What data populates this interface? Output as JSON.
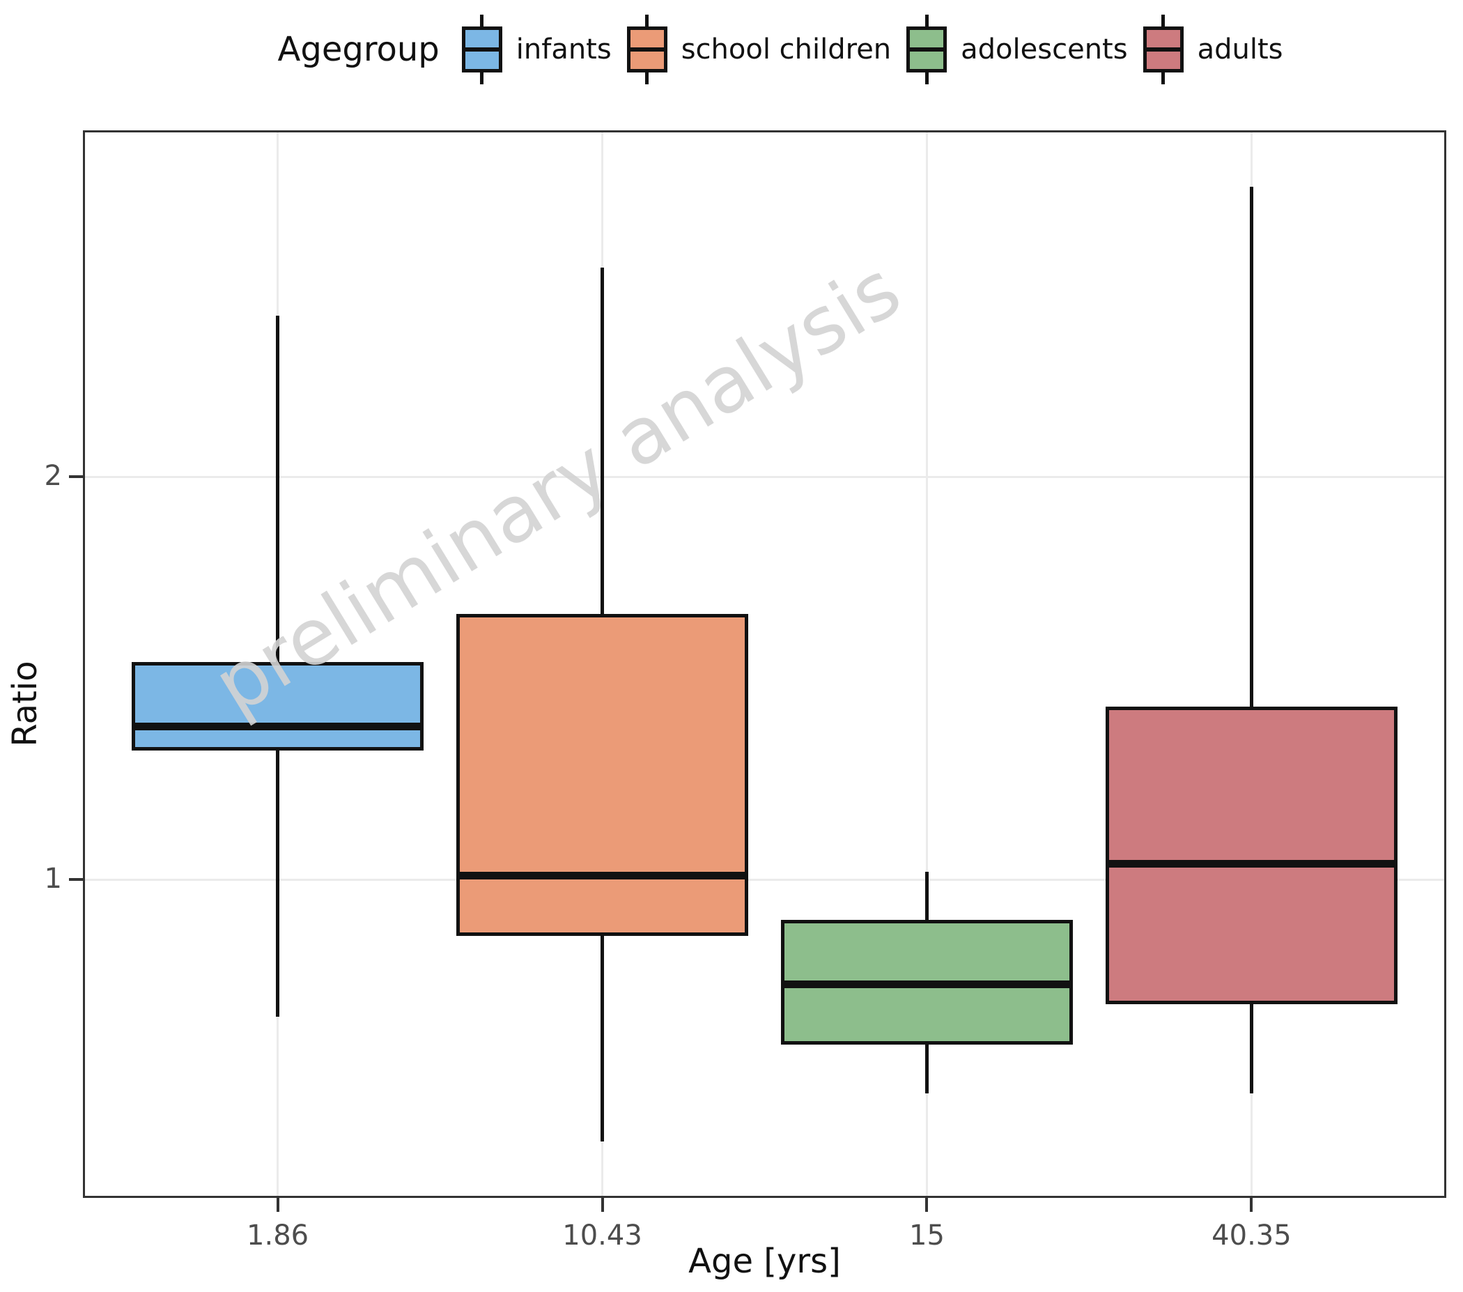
{
  "watermark": "preliminary analysis",
  "legend": {
    "title": "Agegroup",
    "items": [
      {
        "label": "infants",
        "color": "#7CB7E5"
      },
      {
        "label": "school children",
        "color": "#EB9B77"
      },
      {
        "label": "adolescents",
        "color": "#8DBE8C"
      },
      {
        "label": "adults",
        "color": "#CD7B7F"
      }
    ]
  },
  "chart_data": {
    "type": "boxplot",
    "title": "",
    "xlabel": "Age [yrs]",
    "ylabel": "Ratio",
    "x_tick_labels": [
      "1.86",
      "10.43",
      "15",
      "40.35"
    ],
    "y_ticks": [
      {
        "value": 1,
        "label": "1"
      },
      {
        "value": 2,
        "label": "2"
      }
    ],
    "ylim": [
      0.21,
      2.86
    ],
    "grid": true,
    "legend_position": "top",
    "series": [
      {
        "group": "infants",
        "x_label": "1.86",
        "color": "#7CB7E5",
        "whisker_low": 0.66,
        "q1": 1.32,
        "median": 1.38,
        "q3": 1.54,
        "whisker_high": 2.4
      },
      {
        "group": "school children",
        "x_label": "10.43",
        "color": "#EB9B77",
        "whisker_low": 0.35,
        "q1": 0.86,
        "median": 1.01,
        "q3": 1.66,
        "whisker_high": 2.52
      },
      {
        "group": "adolescents",
        "x_label": "15",
        "color": "#8DBE8C",
        "whisker_low": 0.47,
        "q1": 0.59,
        "median": 0.74,
        "q3": 0.9,
        "whisker_high": 1.02
      },
      {
        "group": "adults",
        "x_label": "40.35",
        "color": "#CD7B7F",
        "whisker_low": 0.47,
        "q1": 0.69,
        "median": 1.04,
        "q3": 1.43,
        "whisker_high": 2.72
      }
    ]
  },
  "colors": {
    "box_outline": "#111111",
    "panel_border": "#333333",
    "gridline": "#ebebeb",
    "tick_label": "#4d4d4d",
    "watermark": "#d3d3d3"
  }
}
